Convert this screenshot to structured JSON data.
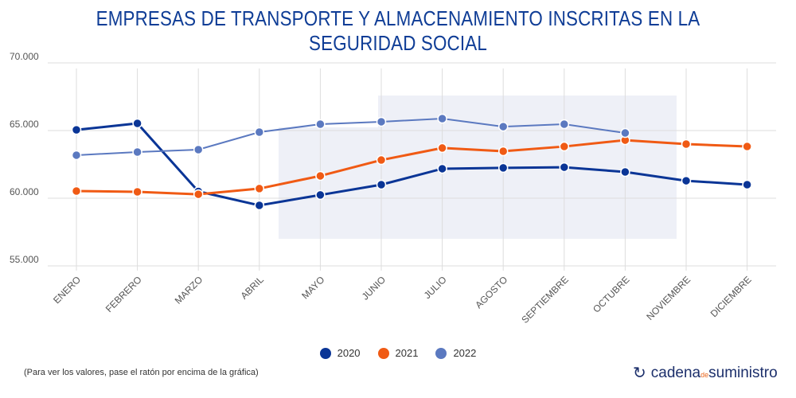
{
  "chart_data": {
    "type": "line",
    "title": "EMPRESAS DE TRANSPORTE Y ALMACENAMIENTO INSCRITAS EN LA SEGURIDAD SOCIAL",
    "categories": [
      "ENERO",
      "FEBRERO",
      "MARZO",
      "ABRIL",
      "MAYO",
      "JUNIO",
      "JULIO",
      "AGOSTO",
      "SEPTIEMBRE",
      "OCTUBRE",
      "NOVIEMBRE",
      "DICIEMBRE"
    ],
    "ylim": [
      55000,
      70000
    ],
    "yticks": [
      "55.000",
      "60.000",
      "65.000",
      "70.000"
    ],
    "ytick_values": [
      55000,
      60000,
      65000,
      70000
    ],
    "grid": true,
    "legend": "bottom",
    "series": [
      {
        "name": "2020",
        "color": "#0a3596",
        "values": [
          65050,
          65530,
          60500,
          59470,
          60240,
          61000,
          62180,
          62240,
          62290,
          61940,
          61290,
          61000
        ]
      },
      {
        "name": "2021",
        "color": "#f05a14",
        "values": [
          60530,
          60470,
          60290,
          60710,
          61650,
          62820,
          63710,
          63470,
          63820,
          64290,
          64000,
          63820
        ]
      },
      {
        "name": "2022",
        "color": "#5b79c0",
        "values": [
          63180,
          63410,
          63590,
          64880,
          65470,
          65650,
          65880,
          65290,
          65470,
          64820,
          null,
          null
        ]
      }
    ]
  },
  "note": "(Para ver los valores, pase el ratón por encima de la gráfica)",
  "logo": {
    "part1": "cadena",
    "part2": "de",
    "part3": "suministro"
  }
}
